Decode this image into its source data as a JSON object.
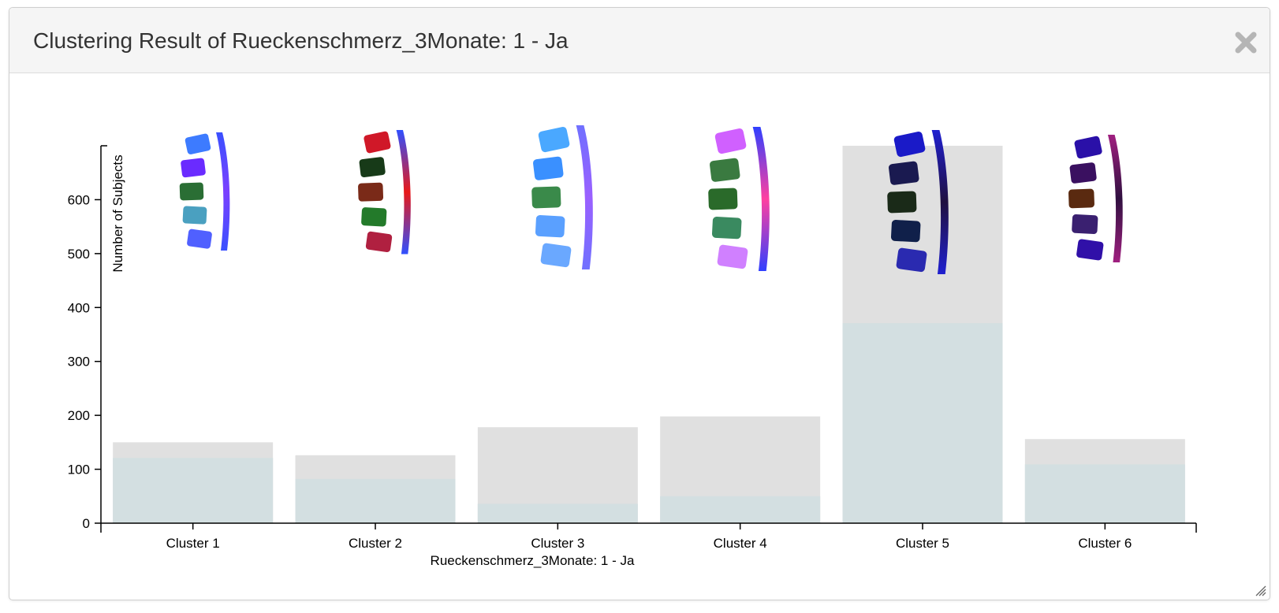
{
  "dialog": {
    "title": "Clustering Result of Rueckenschmerz_3Monate: 1 - Ja"
  },
  "icons": {
    "close": "close-icon",
    "resize": "resize-grip-icon"
  },
  "colors": {
    "total_bar": "#e0e0e0",
    "subset_bar": "#d3dfe1",
    "axis": "#000000"
  },
  "chart_data": {
    "type": "bar",
    "categories": [
      "Cluster 1",
      "Cluster 2",
      "Cluster 3",
      "Cluster 4",
      "Cluster 5",
      "Cluster 6"
    ],
    "series": [
      {
        "values": [
          150,
          126,
          178,
          198,
          700,
          156
        ]
      },
      {
        "values": [
          121,
          82,
          36,
          50,
          371,
          109
        ]
      }
    ],
    "xlabel": "Rueckenschmerz_3Monate: 1 - Ja",
    "ylabel": "Number of Subjects",
    "ylim": [
      0,
      700
    ],
    "yticks": [
      0,
      100,
      200,
      300,
      400,
      500,
      600
    ],
    "grid": false,
    "overlay": "spine glyph image above each cluster"
  }
}
